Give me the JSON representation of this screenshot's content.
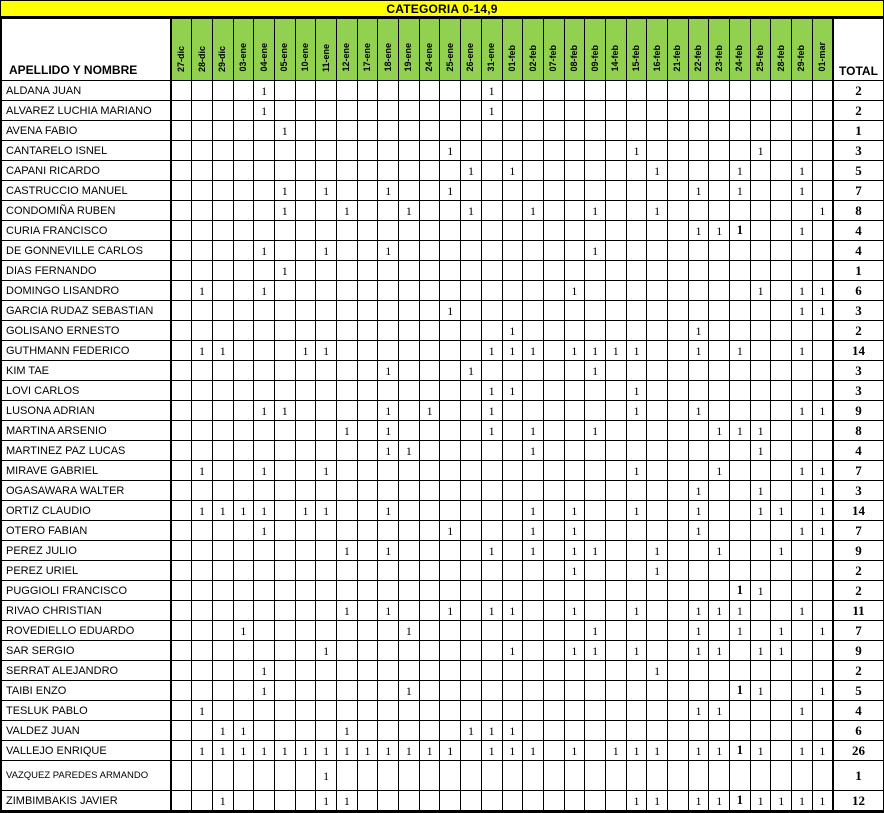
{
  "title": "CATEGORIA 0-14,9",
  "name_header": "APELLIDO Y NOMBRE",
  "total_header": "TOTAL",
  "mark_symbol": "1",
  "colors": {
    "title_bg": "#FFFF00",
    "date_header_bg": "#92D050",
    "grid": "#000000",
    "cell_bg": "#FFFFFF"
  },
  "dates": [
    "27-dic",
    "28-dic",
    "29-dic",
    "03-ene",
    "04-ene",
    "05-ene",
    "10-ene",
    "11-ene",
    "12-ene",
    "17-ene",
    "18-ene",
    "19-ene",
    "24-ene",
    "25-ene",
    "26-ene",
    "31-ene",
    "01-feb",
    "02-feb",
    "07-feb",
    "08-feb",
    "09-feb",
    "14-feb",
    "15-feb",
    "16-feb",
    "21-feb",
    "22-feb",
    "23-feb",
    "24-feb",
    "25-feb",
    "28-feb",
    "29-feb",
    "01-mar"
  ],
  "rows": [
    {
      "name": "ALDANA JUAN",
      "marks": [
        4,
        15
      ],
      "bold_marks": [],
      "total": 2
    },
    {
      "name": "ALVAREZ LUCHIA MARIANO",
      "marks": [
        4,
        15
      ],
      "bold_marks": [],
      "total": 2
    },
    {
      "name": "AVENA FABIO",
      "marks": [
        5
      ],
      "bold_marks": [],
      "total": 1
    },
    {
      "name": "CANTARELO ISNEL",
      "marks": [
        13,
        22,
        28
      ],
      "bold_marks": [],
      "total": 3
    },
    {
      "name": "CAPANI RICARDO",
      "marks": [
        14,
        16,
        23,
        27,
        30
      ],
      "bold_marks": [],
      "total": 5
    },
    {
      "name": "CASTRUCCIO MANUEL",
      "marks": [
        5,
        7,
        10,
        13,
        25,
        27,
        30
      ],
      "bold_marks": [],
      "total": 7
    },
    {
      "name": "CONDOMIÑA RUBEN",
      "marks": [
        5,
        8,
        11,
        14,
        17,
        20,
        23,
        31
      ],
      "bold_marks": [],
      "total": 8
    },
    {
      "name": "CURIA FRANCISCO",
      "marks": [
        25,
        26,
        27,
        30
      ],
      "bold_marks": [
        27
      ],
      "total": 4
    },
    {
      "name": "DE GONNEVILLE CARLOS",
      "marks": [
        4,
        7,
        10,
        20
      ],
      "bold_marks": [],
      "total": 4
    },
    {
      "name": "DIAS FERNANDO",
      "marks": [
        5
      ],
      "bold_marks": [],
      "total": 1
    },
    {
      "name": "DOMINGO LISANDRO",
      "marks": [
        1,
        4,
        19,
        28,
        30,
        31
      ],
      "bold_marks": [],
      "total": 6
    },
    {
      "name": "GARCIA RUDAZ SEBASTIAN",
      "marks": [
        13,
        30,
        31
      ],
      "bold_marks": [],
      "total": 3
    },
    {
      "name": "GOLISANO ERNESTO",
      "marks": [
        16,
        25
      ],
      "bold_marks": [],
      "total": 2
    },
    {
      "name": "GUTHMANN FEDERICO",
      "marks": [
        1,
        2,
        6,
        7,
        15,
        16,
        17,
        19,
        20,
        21,
        22,
        25,
        27,
        30
      ],
      "bold_marks": [],
      "total": 14
    },
    {
      "name": "KIM TAE",
      "marks": [
        10,
        14,
        20
      ],
      "bold_marks": [],
      "total": 3
    },
    {
      "name": "LOVI CARLOS",
      "marks": [
        15,
        16,
        22
      ],
      "bold_marks": [],
      "total": 3
    },
    {
      "name": "LUSONA ADRIAN",
      "marks": [
        4,
        5,
        10,
        12,
        15,
        22,
        25,
        30,
        31
      ],
      "bold_marks": [],
      "total": 9
    },
    {
      "name": "MARTINA ARSENIO",
      "marks": [
        8,
        10,
        15,
        17,
        20,
        26,
        27,
        28
      ],
      "bold_marks": [],
      "total": 8
    },
    {
      "name": "MARTINEZ PAZ LUCAS",
      "marks": [
        10,
        11,
        17,
        28
      ],
      "bold_marks": [],
      "total": 4
    },
    {
      "name": "MIRAVE GABRIEL",
      "marks": [
        1,
        4,
        7,
        22,
        26,
        30,
        31
      ],
      "bold_marks": [],
      "total": 7
    },
    {
      "name": "OGASAWARA WALTER",
      "marks": [
        25,
        28,
        31
      ],
      "bold_marks": [],
      "total": 3
    },
    {
      "name": "ORTIZ CLAUDIO",
      "marks": [
        1,
        2,
        3,
        4,
        6,
        7,
        10,
        17,
        19,
        22,
        25,
        28,
        29,
        31
      ],
      "bold_marks": [],
      "total": 14
    },
    {
      "name": "OTERO FABIAN",
      "marks": [
        4,
        13,
        17,
        19,
        25,
        30,
        31
      ],
      "bold_marks": [],
      "total": 7
    },
    {
      "name": "PEREZ JULIO",
      "marks": [
        8,
        10,
        15,
        17,
        19,
        20,
        23,
        26,
        29
      ],
      "bold_marks": [],
      "total": 9
    },
    {
      "name": "PEREZ URIEL",
      "marks": [
        19,
        23
      ],
      "bold_marks": [],
      "total": 2
    },
    {
      "name": "PUGGIOLI FRANCISCO",
      "marks": [
        27,
        28
      ],
      "bold_marks": [
        27
      ],
      "total": 2
    },
    {
      "name": "RIVAO CHRISTIAN",
      "marks": [
        8,
        10,
        13,
        15,
        16,
        19,
        22,
        25,
        26,
        27,
        30
      ],
      "bold_marks": [],
      "total": 11
    },
    {
      "name": "ROVEDIELLO EDUARDO",
      "marks": [
        3,
        11,
        20,
        25,
        27,
        29,
        31
      ],
      "bold_marks": [],
      "total": 7
    },
    {
      "name": "SAR SERGIO",
      "marks": [
        7,
        16,
        19,
        20,
        22,
        25,
        26,
        28,
        29
      ],
      "bold_marks": [],
      "total": 9
    },
    {
      "name": "SERRAT ALEJANDRO",
      "marks": [
        4,
        23
      ],
      "bold_marks": [],
      "total": 2
    },
    {
      "name": "TAIBI ENZO",
      "marks": [
        4,
        11,
        27,
        28,
        31
      ],
      "bold_marks": [
        27
      ],
      "total": 5
    },
    {
      "name": "TESLUK PABLO",
      "marks": [
        1,
        25,
        26,
        30
      ],
      "bold_marks": [],
      "total": 4
    },
    {
      "name": "VALDEZ JUAN",
      "marks": [
        2,
        3,
        8,
        14,
        15,
        16
      ],
      "bold_marks": [],
      "total": 6
    },
    {
      "name": "VALLEJO ENRIQUE",
      "marks": [
        1,
        2,
        3,
        4,
        5,
        6,
        7,
        8,
        9,
        10,
        11,
        12,
        13,
        15,
        16,
        17,
        19,
        21,
        22,
        23,
        25,
        26,
        27,
        28,
        30,
        31
      ],
      "bold_marks": [
        27
      ],
      "total": 26
    },
    {
      "name": "VAZQUEZ PAREDES ARMANDO",
      "marks": [
        7
      ],
      "bold_marks": [],
      "total": 1,
      "tall": true
    },
    {
      "name": "ZIMBIMBAKIS JAVIER",
      "marks": [
        2,
        7,
        8,
        22,
        23,
        25,
        26,
        27,
        28,
        29,
        30,
        31
      ],
      "bold_marks": [
        27
      ],
      "total": 12,
      "last": true
    }
  ]
}
